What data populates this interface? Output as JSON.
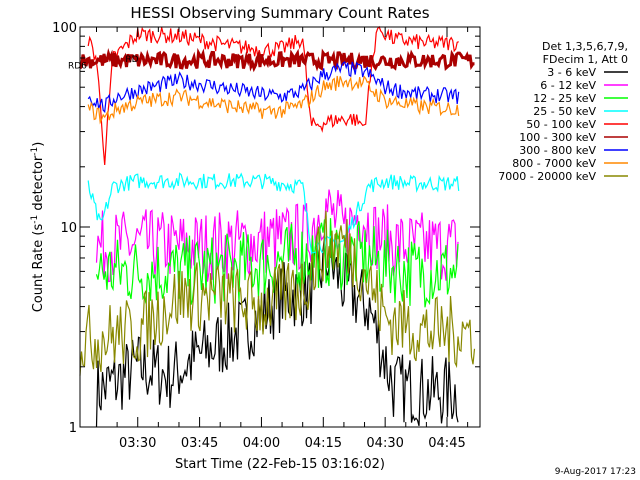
{
  "chart_data": {
    "type": "line",
    "title": "HESSI Observing Summary Count Rates",
    "xlabel": "Start Time (22-Feb-15 03:16:02)",
    "ylabel": "Count Rate (s",
    "ylabel_sup": "-1",
    "ylabel_tail": " detector",
    "ylabel_close": ")",
    "y_scale": "log",
    "ylim": [
      1,
      100
    ],
    "y_ticks": [
      {
        "value": 1,
        "label": "1"
      },
      {
        "value": 10,
        "label": "10"
      },
      {
        "value": 100,
        "label": "100"
      }
    ],
    "xlim": [
      "03:16",
      "04:53"
    ],
    "x_ticks": [
      {
        "t": "03:30",
        "label": "03:30"
      },
      {
        "t": "03:45",
        "label": "03:45"
      },
      {
        "t": "04:00",
        "label": "04:00"
      },
      {
        "t": "04:15",
        "label": "04:15"
      },
      {
        "t": "04:30",
        "label": "04:30"
      },
      {
        "t": "04:45",
        "label": "04:45"
      }
    ],
    "legend_header": [
      "Det 1,3,5,6,7,9,",
      "FDecim 1, Att 0"
    ],
    "legend_position": "right",
    "series": [
      {
        "name": "3 - 6 keV",
        "color": "#000000",
        "x": [
          "03:20",
          "03:25",
          "03:30",
          "03:38",
          "03:45",
          "03:55",
          "04:05",
          "04:12",
          "04:16",
          "04:20",
          "04:26",
          "04:32",
          "04:40",
          "04:48"
        ],
        "values": [
          1.5,
          1.7,
          2.0,
          1.8,
          2.3,
          3.0,
          4.5,
          4.8,
          7.0,
          5.0,
          4.0,
          1.6,
          1.5,
          1.5
        ]
      },
      {
        "name": "6 - 12 keV",
        "color": "#ff00ff",
        "x": [
          "03:20",
          "03:30",
          "03:45",
          "04:00",
          "04:11",
          "04:15",
          "04:20",
          "04:24",
          "04:28",
          "04:35",
          "04:48"
        ],
        "values": [
          8.0,
          8.2,
          8.0,
          8.5,
          9.0,
          13.0,
          9.5,
          12.0,
          9.0,
          8.0,
          8.0
        ]
      },
      {
        "name": "12 - 25 keV",
        "color": "#00ff00",
        "x": [
          "03:20",
          "03:30",
          "03:45",
          "04:00",
          "04:15",
          "04:25",
          "04:35",
          "04:48"
        ],
        "values": [
          6.0,
          6.0,
          6.0,
          6.5,
          7.5,
          7.0,
          6.0,
          6.0
        ]
      },
      {
        "name": "25 - 50 keV",
        "color": "#00ffff",
        "x": [
          "03:18",
          "03:21",
          "03:24",
          "03:30",
          "03:45",
          "04:00",
          "04:10",
          "04:12",
          "04:20",
          "04:26",
          "04:30",
          "04:36",
          "04:48"
        ],
        "values": [
          16.0,
          10.0,
          16.0,
          17.0,
          17.0,
          17.0,
          16.0,
          8.0,
          8.5,
          16.0,
          17.0,
          16.5,
          16.5
        ]
      },
      {
        "name": "50 - 100 keV",
        "color": "#ff0000",
        "x": [
          "03:18",
          "03:20",
          "03:22",
          "03:24",
          "03:30",
          "03:40",
          "03:50",
          "04:00",
          "04:05",
          "04:08",
          "04:10",
          "04:12",
          "04:17",
          "04:22",
          "04:25",
          "04:28",
          "04:32",
          "04:40",
          "04:48"
        ],
        "values": [
          86,
          70,
          22,
          70,
          92,
          90,
          82,
          77,
          78,
          83,
          88,
          32,
          34,
          35,
          32,
          100,
          87,
          83,
          83
        ]
      },
      {
        "name": "100 - 300 keV",
        "color": "#aa0000",
        "x": [
          "03:16",
          "03:22",
          "03:30",
          "03:40",
          "03:50",
          "04:00",
          "04:10",
          "04:20",
          "04:30",
          "04:40",
          "04:52"
        ],
        "values": [
          68,
          68,
          68,
          68,
          68,
          68,
          68,
          68,
          68,
          68,
          68
        ]
      },
      {
        "name": "300 - 800 keV",
        "color": "#0000ff",
        "x": [
          "03:18",
          "03:22",
          "03:25",
          "03:30",
          "03:40",
          "03:50",
          "04:00",
          "04:05",
          "04:10",
          "04:15",
          "04:20",
          "04:25",
          "04:30",
          "04:38",
          "04:48"
        ],
        "values": [
          45,
          40,
          45,
          48,
          54,
          50,
          46,
          45,
          48,
          58,
          62,
          60,
          50,
          46,
          45
        ]
      },
      {
        "name": "800 - 7000 keV",
        "color": "#ff8800",
        "x": [
          "03:18",
          "03:22",
          "03:25",
          "03:30",
          "03:40",
          "03:50",
          "04:00",
          "04:05",
          "04:10",
          "04:15",
          "04:20",
          "04:25",
          "04:30",
          "04:38",
          "04:48"
        ],
        "values": [
          39,
          35,
          39,
          42,
          45,
          41,
          38,
          38,
          41,
          50,
          54,
          52,
          43,
          40,
          39
        ]
      },
      {
        "name": "7000 - 20000 keV",
        "color": "#888800",
        "x": [
          "03:16",
          "03:30",
          "03:40",
          "03:50",
          "04:00",
          "04:10",
          "04:15",
          "04:20",
          "04:25",
          "04:30",
          "04:40",
          "04:52"
        ],
        "values": [
          2.7,
          3.0,
          4.5,
          4.5,
          4.0,
          5.0,
          8.0,
          8.5,
          6.0,
          3.5,
          3.0,
          3.0
        ]
      }
    ],
    "annotations": [
      {
        "label": "RD6",
        "t": "03:16",
        "y": 65
      },
      {
        "label": "RD",
        "t": "03:27",
        "y": 70
      }
    ],
    "footer_date": "9-Aug-2017 17:23"
  }
}
